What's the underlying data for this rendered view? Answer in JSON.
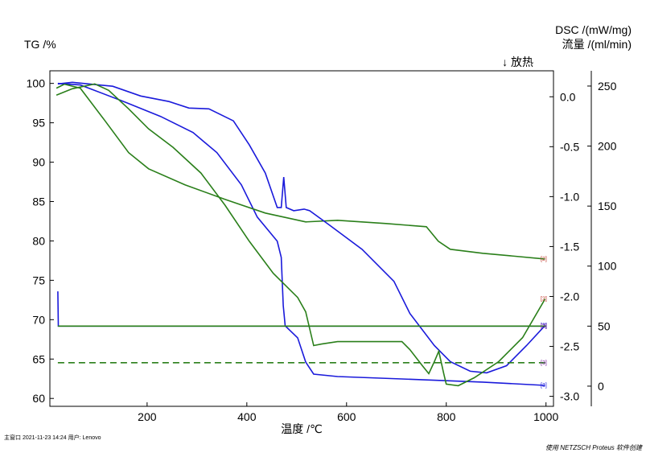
{
  "chart_data": {
    "type": "line",
    "xlabel": "温度 /℃",
    "ylabel": "TG /%",
    "y2label": "DSC /(mW/mg)",
    "y3label": "流量 /(ml/min)",
    "annotation": "↓ 放热",
    "footer_left": "主窗口   2021-11-23 14:24   用户: Lenovo",
    "footer_right": "使用 NETZSCH Proteus 软件创建",
    "xlim": [
      5,
      1015
    ],
    "xticks": [
      200,
      400,
      600,
      800,
      1000
    ],
    "ylim": [
      59,
      101.6
    ],
    "yticks": [
      60,
      65,
      70,
      75,
      80,
      85,
      90,
      95,
      100
    ],
    "y2lim": [
      -3.1,
      0.26
    ],
    "y2ticks": [
      {
        "value": -3,
        "label": "-3.0"
      },
      -2.5,
      {
        "value": -2,
        "label": "-2.0"
      },
      -1.5,
      {
        "value": -1,
        "label": "-1.0"
      },
      -0.5,
      {
        "value": 0,
        "label": "0.0"
      }
    ],
    "y3lim": [
      -16.8,
      262.7
    ],
    "y3ticks": [
      0,
      50,
      100,
      150,
      200,
      250
    ],
    "series": [
      {
        "axis": "y",
        "color": "#1a1adb",
        "end_label": "[3]",
        "label_color": "#1a1adb",
        "x": [
          21,
          66,
          147,
          227,
          292,
          340,
          389,
          421,
          445,
          461,
          469,
          473,
          477,
          502,
          518,
          534,
          582,
          711,
          873,
          998
        ],
        "values": [
          100,
          99.8,
          97.85,
          95.81,
          93.76,
          91.21,
          87.12,
          83.03,
          81.19,
          79.96,
          77.91,
          71.78,
          69.22,
          67.69,
          64.62,
          63.09,
          62.78,
          62.47,
          62.07,
          61.66
        ]
      },
      {
        "axis": "y",
        "color": "#2a7f1a",
        "end_label": "[2]",
        "label_color": "#c0392b",
        "x": [
          18,
          34,
          66,
          115,
          163,
          203,
          276,
          356,
          437,
          518,
          582,
          679,
          760,
          784,
          808,
          873,
          998
        ],
        "values": [
          99.39,
          99.9,
          99.39,
          95.3,
          91.21,
          89.16,
          87.12,
          85.28,
          83.54,
          82.41,
          82.62,
          82.21,
          81.8,
          79.96,
          78.94,
          78.43,
          77.71
        ]
      },
      {
        "axis": "y2",
        "color": "#1a1adb",
        "end_label": "[3]",
        "label_color": "#1a1adb",
        "x": [
          21,
          50,
          131,
          187,
          244,
          284,
          324,
          373,
          405,
          437,
          461,
          469,
          474,
          479,
          494,
          515,
          526,
          566,
          631,
          695,
          727,
          776,
          808,
          848,
          881,
          921,
          961,
          998
        ],
        "values": [
          0.129,
          0.145,
          0.105,
          0.008,
          -0.048,
          -0.113,
          -0.121,
          -0.241,
          -0.482,
          -0.764,
          -1.109,
          -1.109,
          -0.804,
          -1.109,
          -1.141,
          -1.125,
          -1.141,
          -1.286,
          -1.527,
          -1.849,
          -2.17,
          -2.492,
          -2.653,
          -2.749,
          -2.765,
          -2.693,
          -2.492,
          -2.291
        ]
      },
      {
        "axis": "y2",
        "color": "#2a7f1a",
        "end_label": "[2]",
        "label_color": "#c0392b",
        "x": [
          18,
          50,
          95,
          123,
          163,
          203,
          252,
          308,
          356,
          405,
          453,
          502,
          518,
          534,
          550,
          582,
          647,
          711,
          727,
          752,
          765,
          776,
          785,
          795,
          800,
          824,
          856,
          905,
          953,
          998
        ],
        "values": [
          0.016,
          0.08,
          0.129,
          0.064,
          -0.121,
          -0.322,
          -0.506,
          -0.764,
          -1.085,
          -1.447,
          -1.768,
          -2.01,
          -2.154,
          -2.492,
          -2.476,
          -2.452,
          -2.452,
          -2.452,
          -2.532,
          -2.693,
          -2.773,
          -2.653,
          -2.548,
          -2.773,
          -2.878,
          -2.894,
          -2.814,
          -2.653,
          -2.412,
          -2.026
        ]
      },
      {
        "axis": "y3",
        "color": "#1a1adb",
        "end_label": "[3]",
        "label_color": "#1a1adb",
        "x": [
          21,
          22,
          1000
        ],
        "values": [
          79,
          50,
          50
        ]
      },
      {
        "axis": "y3",
        "color": "#2a7f1a",
        "end_label": "[3]",
        "label_color": "#7b1fa2",
        "x": [
          21,
          1000
        ],
        "values": [
          50,
          50
        ]
      },
      {
        "axis": "y3",
        "color": "#2a7f1a",
        "dash": true,
        "end_label": "[3]",
        "label_color": "#7b1fa2",
        "x": [
          21,
          1000
        ],
        "values": [
          19.5,
          19.5
        ]
      }
    ]
  }
}
